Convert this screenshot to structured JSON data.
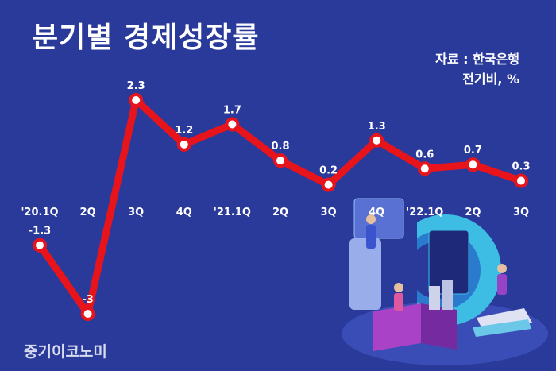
{
  "title": "분기별 경제성장률",
  "source": {
    "line1": "자료 : 한국은행",
    "line2": "전기비, %"
  },
  "watermark": "중기이코노미",
  "colors": {
    "background": "#2a3a9a",
    "line": "#e8141b",
    "marker_fill": "#ffffff",
    "text": "#ffffff"
  },
  "chart_data": {
    "type": "line",
    "categories": [
      "'20.1Q",
      "2Q",
      "3Q",
      "4Q",
      "'21.1Q",
      "2Q",
      "3Q",
      "4Q",
      "'22.1Q",
      "2Q",
      "3Q"
    ],
    "values": [
      -1.3,
      -3,
      2.3,
      1.2,
      1.7,
      0.8,
      0.2,
      1.3,
      0.6,
      0.7,
      0.3
    ],
    "data_labels": [
      "-1.3",
      "-3",
      "2.3",
      "1.2",
      "1.7",
      "0.8",
      "0.2",
      "1.3",
      "0.6",
      "0.7",
      "0.3"
    ],
    "xlabel": "",
    "ylabel": "",
    "ylim": [
      -3,
      2.3
    ],
    "grid": false,
    "legend": "none"
  }
}
